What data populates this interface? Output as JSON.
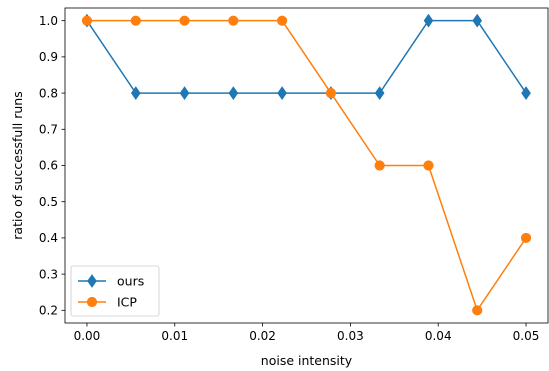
{
  "chart_data": {
    "type": "line",
    "title": "",
    "xlabel": "noise intensity",
    "ylabel": "ratio of successfull runs",
    "xlim": [
      -0.0025,
      0.0525
    ],
    "ylim": [
      0.165,
      1.035
    ],
    "xticks": [
      0.0,
      0.01,
      0.02,
      0.03,
      0.04,
      0.05
    ],
    "xtick_labels": [
      "0.00",
      "0.01",
      "0.02",
      "0.03",
      "0.04",
      "0.05"
    ],
    "yticks": [
      0.2,
      0.3,
      0.4,
      0.5,
      0.6,
      0.7,
      0.8,
      0.9,
      1.0
    ],
    "ytick_labels": [
      "0.2",
      "0.3",
      "0.4",
      "0.5",
      "0.6",
      "0.7",
      "0.8",
      "0.9",
      "1.0"
    ],
    "x": [
      0.0,
      0.00556,
      0.01111,
      0.01667,
      0.02222,
      0.02778,
      0.03333,
      0.03889,
      0.04444,
      0.05
    ],
    "series": [
      {
        "name": "ours",
        "color": "#1f77b4",
        "marker": "diamond",
        "values": [
          1.0,
          0.8,
          0.8,
          0.8,
          0.8,
          0.8,
          0.8,
          1.0,
          1.0,
          0.8
        ]
      },
      {
        "name": "ICP",
        "color": "#ff7f0e",
        "marker": "circle",
        "values": [
          1.0,
          1.0,
          1.0,
          1.0,
          1.0,
          0.8,
          0.6,
          0.6,
          0.2,
          0.4
        ]
      }
    ],
    "legend_position": "lower-left",
    "grid": false
  }
}
